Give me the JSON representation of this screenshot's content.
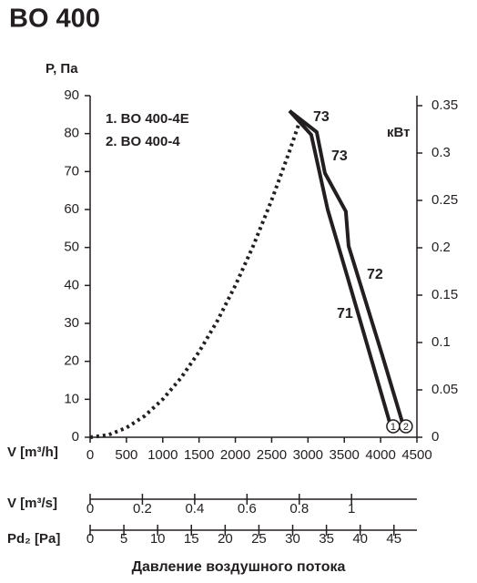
{
  "chart_data": {
    "type": "line",
    "title": "BO 400",
    "ylabel": "P, Па",
    "y2label": "кВт",
    "xlabel": "V [m³/h]",
    "footer": "Давление воздушного потока",
    "legend": [
      "1. BO 400-4E",
      "2. BO 400-4"
    ],
    "annotations": [
      "73",
      "73",
      "72",
      "71"
    ],
    "xlim": [
      0,
      4500
    ],
    "xticks": [
      0,
      500,
      1000,
      1500,
      2000,
      2500,
      3000,
      3500,
      4000,
      4500
    ],
    "ylim": [
      0,
      90
    ],
    "yticks": [
      0,
      10,
      20,
      30,
      40,
      50,
      60,
      70,
      80,
      90
    ],
    "y2lim": [
      0,
      0.35
    ],
    "y2ticks": [
      0,
      0.05,
      0.1,
      0.15,
      0.2,
      0.25,
      0.3,
      0.35
    ],
    "grid": false,
    "series": [
      {
        "style": "dotted",
        "color": "#231f20",
        "x": [
          0,
          250,
          500,
          750,
          1000,
          1250,
          1500,
          1750,
          2000,
          2250,
          2500,
          2750,
          2900
        ],
        "values": [
          0,
          0.6,
          2.5,
          5.6,
          10,
          15.6,
          22.5,
          30.6,
          40,
          50.6,
          62.5,
          75.6,
          84
        ]
      },
      {
        "name": "1",
        "style": "solid",
        "color": "#231f20",
        "x": [
          2745,
          3045,
          3271,
          3584,
          4148
        ],
        "values": [
          86,
          79.7,
          60,
          39.6,
          2.4
        ]
      },
      {
        "name": "2",
        "style": "solid",
        "color": "#231f20",
        "x": [
          2745,
          3120,
          3233,
          3521,
          3559,
          4023,
          4323
        ],
        "values": [
          86,
          80.4,
          69.6,
          59.5,
          50.4,
          21.6,
          2.4
        ]
      }
    ],
    "scales": [
      {
        "label": "V [m³/s]",
        "xlim": [
          0,
          1.25
        ],
        "xticks": [
          0,
          0.2,
          0.4,
          0.6,
          0.8,
          1
        ]
      },
      {
        "label": "Pd₂ [Pa]",
        "xlim": [
          0,
          48.4
        ],
        "xticks": [
          0,
          5,
          10,
          15,
          20,
          25,
          30,
          35,
          40,
          45
        ]
      }
    ]
  }
}
